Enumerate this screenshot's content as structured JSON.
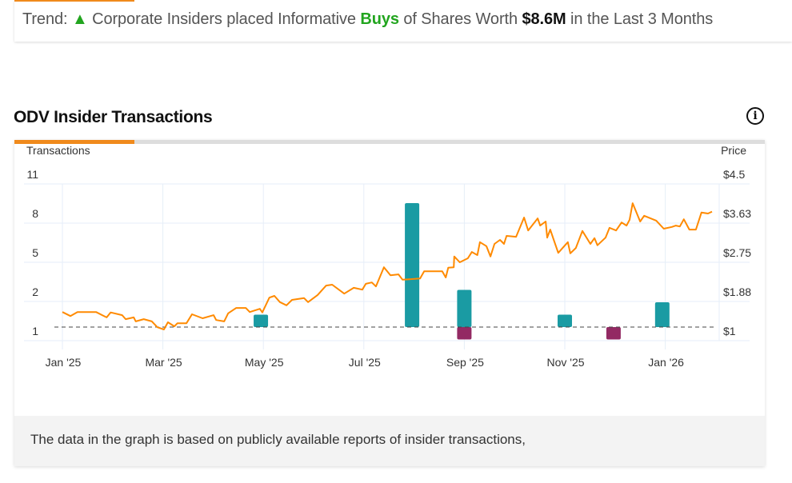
{
  "trend": {
    "prefix": "Trend:",
    "arrow": "▲",
    "text1": "Corporate Insiders placed Informative",
    "buys": "Buys",
    "text2": "of Shares Worth",
    "amount": "$8.6M",
    "text3": "in the Last 3 Months"
  },
  "section": {
    "title": "ODV Insider Transactions",
    "info_icon": "info-circle-icon"
  },
  "footer": {
    "text": "The data in the graph is based on publicly available reports of insider transactions,"
  },
  "colors": {
    "accent": "#f08a1c",
    "buy": "#1a9ba3",
    "sell": "#932a63",
    "price": "#ff8a00",
    "trend_up": "#22a51f"
  },
  "chart_data": {
    "type": "bar+line",
    "left_axis_label": "Transactions",
    "right_axis_label": "Price",
    "left_ticks": [
      "11",
      "8",
      "5",
      "2",
      "1"
    ],
    "right_ticks": [
      "$4.5",
      "$3.63",
      "$2.75",
      "$1.88",
      "$1"
    ],
    "right_range": [
      1,
      4.5
    ],
    "x_ticks": [
      {
        "label": "Jan '25",
        "month": 0
      },
      {
        "label": "Mar '25",
        "month": 2
      },
      {
        "label": "May '25",
        "month": 4
      },
      {
        "label": "Jul '25",
        "month": 6
      },
      {
        "label": "Sep '25",
        "month": 8
      },
      {
        "label": "Nov '25",
        "month": 10
      },
      {
        "label": "Jan '26",
        "month": 12
      }
    ],
    "buys": [
      {
        "month": 3.95,
        "count": 1
      },
      {
        "month": 6.96,
        "count": 10
      },
      {
        "month": 8.0,
        "count": 3
      },
      {
        "month": 10.0,
        "count": 1
      },
      {
        "month": 11.94,
        "count": 2
      }
    ],
    "sells": [
      {
        "month": 8.0,
        "count": 1
      },
      {
        "month": 10.97,
        "count": 1
      }
    ],
    "price": [
      [
        0,
        1.64
      ],
      [
        0.16,
        1.55
      ],
      [
        0.3,
        1.64
      ],
      [
        0.67,
        1.64
      ],
      [
        0.88,
        1.52
      ],
      [
        0.96,
        1.63
      ],
      [
        1.19,
        1.57
      ],
      [
        1.26,
        1.48
      ],
      [
        1.42,
        1.52
      ],
      [
        1.46,
        1.43
      ],
      [
        1.62,
        1.48
      ],
      [
        1.78,
        1.43
      ],
      [
        1.89,
        1.3
      ],
      [
        2.02,
        1.25
      ],
      [
        2.1,
        1.41
      ],
      [
        2.23,
        1.32
      ],
      [
        2.29,
        1.39
      ],
      [
        2.47,
        1.39
      ],
      [
        2.58,
        1.59
      ],
      [
        2.79,
        1.5
      ],
      [
        3.01,
        1.57
      ],
      [
        3.06,
        1.46
      ],
      [
        3.22,
        1.43
      ],
      [
        3.3,
        1.61
      ],
      [
        3.46,
        1.73
      ],
      [
        3.65,
        1.73
      ],
      [
        3.73,
        1.64
      ],
      [
        3.93,
        1.71
      ],
      [
        3.98,
        1.63
      ],
      [
        4.12,
        1.96
      ],
      [
        4.22,
        2.0
      ],
      [
        4.33,
        1.86
      ],
      [
        4.46,
        1.79
      ],
      [
        4.57,
        1.91
      ],
      [
        4.81,
        1.95
      ],
      [
        4.89,
        1.86
      ],
      [
        5.08,
        2.02
      ],
      [
        5.25,
        2.23
      ],
      [
        5.37,
        2.25
      ],
      [
        5.61,
        2.05
      ],
      [
        5.8,
        2.18
      ],
      [
        5.97,
        2.14
      ],
      [
        6.04,
        2.27
      ],
      [
        6.16,
        2.3
      ],
      [
        6.24,
        2.21
      ],
      [
        6.4,
        2.64
      ],
      [
        6.53,
        2.46
      ],
      [
        6.69,
        2.48
      ],
      [
        6.77,
        2.36
      ],
      [
        7.12,
        2.39
      ],
      [
        7.2,
        2.55
      ],
      [
        7.56,
        2.55
      ],
      [
        7.63,
        2.41
      ],
      [
        7.68,
        2.63
      ],
      [
        7.79,
        2.64
      ],
      [
        7.8,
        2.88
      ],
      [
        7.91,
        2.75
      ],
      [
        8.07,
        2.84
      ],
      [
        8.15,
        2.98
      ],
      [
        8.26,
        2.91
      ],
      [
        8.31,
        3.2
      ],
      [
        8.44,
        3.11
      ],
      [
        8.52,
        2.88
      ],
      [
        8.6,
        3.16
      ],
      [
        8.71,
        3.25
      ],
      [
        8.79,
        3.16
      ],
      [
        8.84,
        3.34
      ],
      [
        9.03,
        3.32
      ],
      [
        9.19,
        3.75
      ],
      [
        9.27,
        3.46
      ],
      [
        9.46,
        3.73
      ],
      [
        9.51,
        3.57
      ],
      [
        9.62,
        3.66
      ],
      [
        9.65,
        3.3
      ],
      [
        9.71,
        3.48
      ],
      [
        9.78,
        3.25
      ],
      [
        9.87,
        2.96
      ],
      [
        10.06,
        3.2
      ],
      [
        10.11,
        2.95
      ],
      [
        10.22,
        3.07
      ],
      [
        10.35,
        3.45
      ],
      [
        10.51,
        3.16
      ],
      [
        10.59,
        3.29
      ],
      [
        10.65,
        3.13
      ],
      [
        10.81,
        3.3
      ],
      [
        10.89,
        3.52
      ],
      [
        11.02,
        3.46
      ],
      [
        11.13,
        3.64
      ],
      [
        11.23,
        3.57
      ],
      [
        11.29,
        3.7
      ],
      [
        11.35,
        4.07
      ],
      [
        11.5,
        3.66
      ],
      [
        11.58,
        3.79
      ],
      [
        11.82,
        3.68
      ],
      [
        11.97,
        3.5
      ],
      [
        12.13,
        3.54
      ],
      [
        12.21,
        3.57
      ],
      [
        12.29,
        3.55
      ],
      [
        12.37,
        3.71
      ],
      [
        12.48,
        3.48
      ],
      [
        12.61,
        3.48
      ],
      [
        12.72,
        3.86
      ],
      [
        12.85,
        3.84
      ],
      [
        12.93,
        3.88
      ]
    ],
    "grid": true
  }
}
